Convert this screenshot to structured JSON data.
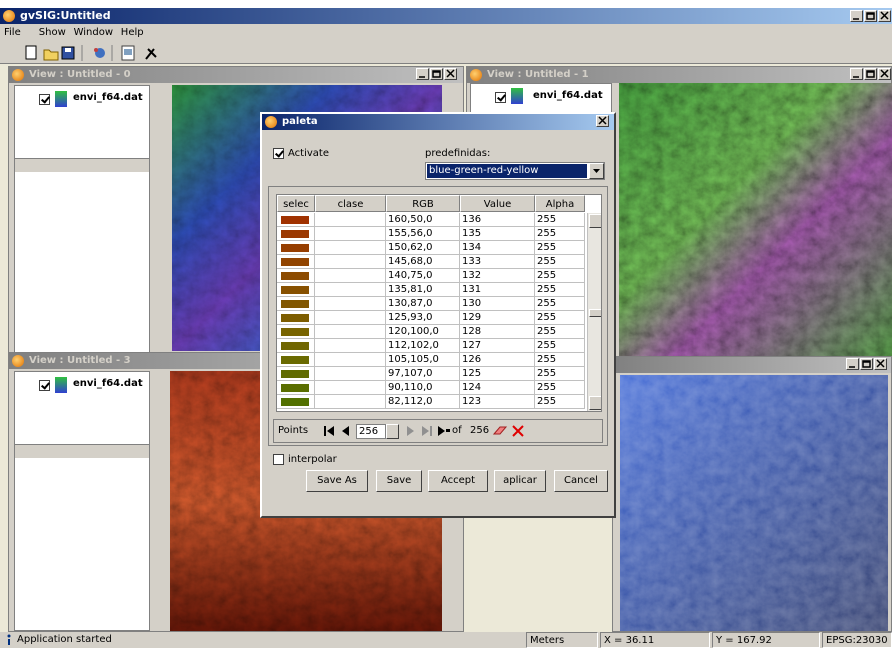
{
  "app": {
    "title": "gvSIG:Untitled",
    "menu": [
      "File",
      "Show",
      "Window",
      "Help"
    ]
  },
  "views": [
    {
      "title": "View : Untitled - 0",
      "layer": "envi_f64.dat"
    },
    {
      "title": "View : Untitled - 1",
      "layer": "envi_f64.dat"
    },
    {
      "title": "View : Untitled - 3",
      "layer": "envi_f64.dat"
    }
  ],
  "dialog": {
    "title": "paleta",
    "activate": "Activate",
    "predefined_label": "predefinidas:",
    "predefined_value": "blue-green-red-yellow",
    "table": {
      "columns": [
        "selec",
        "clase",
        "RGB",
        "Value",
        "Alpha"
      ],
      "rows": [
        {
          "rgb": "160,50,0",
          "value": 136,
          "alpha": 255
        },
        {
          "rgb": "155,56,0",
          "value": 135,
          "alpha": 255
        },
        {
          "rgb": "150,62,0",
          "value": 134,
          "alpha": 255
        },
        {
          "rgb": "145,68,0",
          "value": 133,
          "alpha": 255
        },
        {
          "rgb": "140,75,0",
          "value": 132,
          "alpha": 255
        },
        {
          "rgb": "135,81,0",
          "value": 131,
          "alpha": 255
        },
        {
          "rgb": "130,87,0",
          "value": 130,
          "alpha": 255
        },
        {
          "rgb": "125,93,0",
          "value": 129,
          "alpha": 255
        },
        {
          "rgb": "120,100,0",
          "value": 128,
          "alpha": 255
        },
        {
          "rgb": "112,102,0",
          "value": 127,
          "alpha": 255
        },
        {
          "rgb": "105,105,0",
          "value": 126,
          "alpha": 255
        },
        {
          "rgb": "97,107,0",
          "value": 125,
          "alpha": 255
        },
        {
          "rgb": "90,110,0",
          "value": 124,
          "alpha": 255
        },
        {
          "rgb": "82,112,0",
          "value": 123,
          "alpha": 255
        }
      ]
    },
    "points": {
      "label": "Points",
      "current": 256,
      "of": "of",
      "total": 256
    },
    "interpolate": "interpolar",
    "buttons": [
      "Save As",
      "Save",
      "Accept",
      "aplicar",
      "Cancel"
    ]
  },
  "status": {
    "message": "Application started",
    "units": "Meters",
    "x": "X = 36.11",
    "y": "Y = 167.92",
    "crs": "EPSG:23030"
  }
}
